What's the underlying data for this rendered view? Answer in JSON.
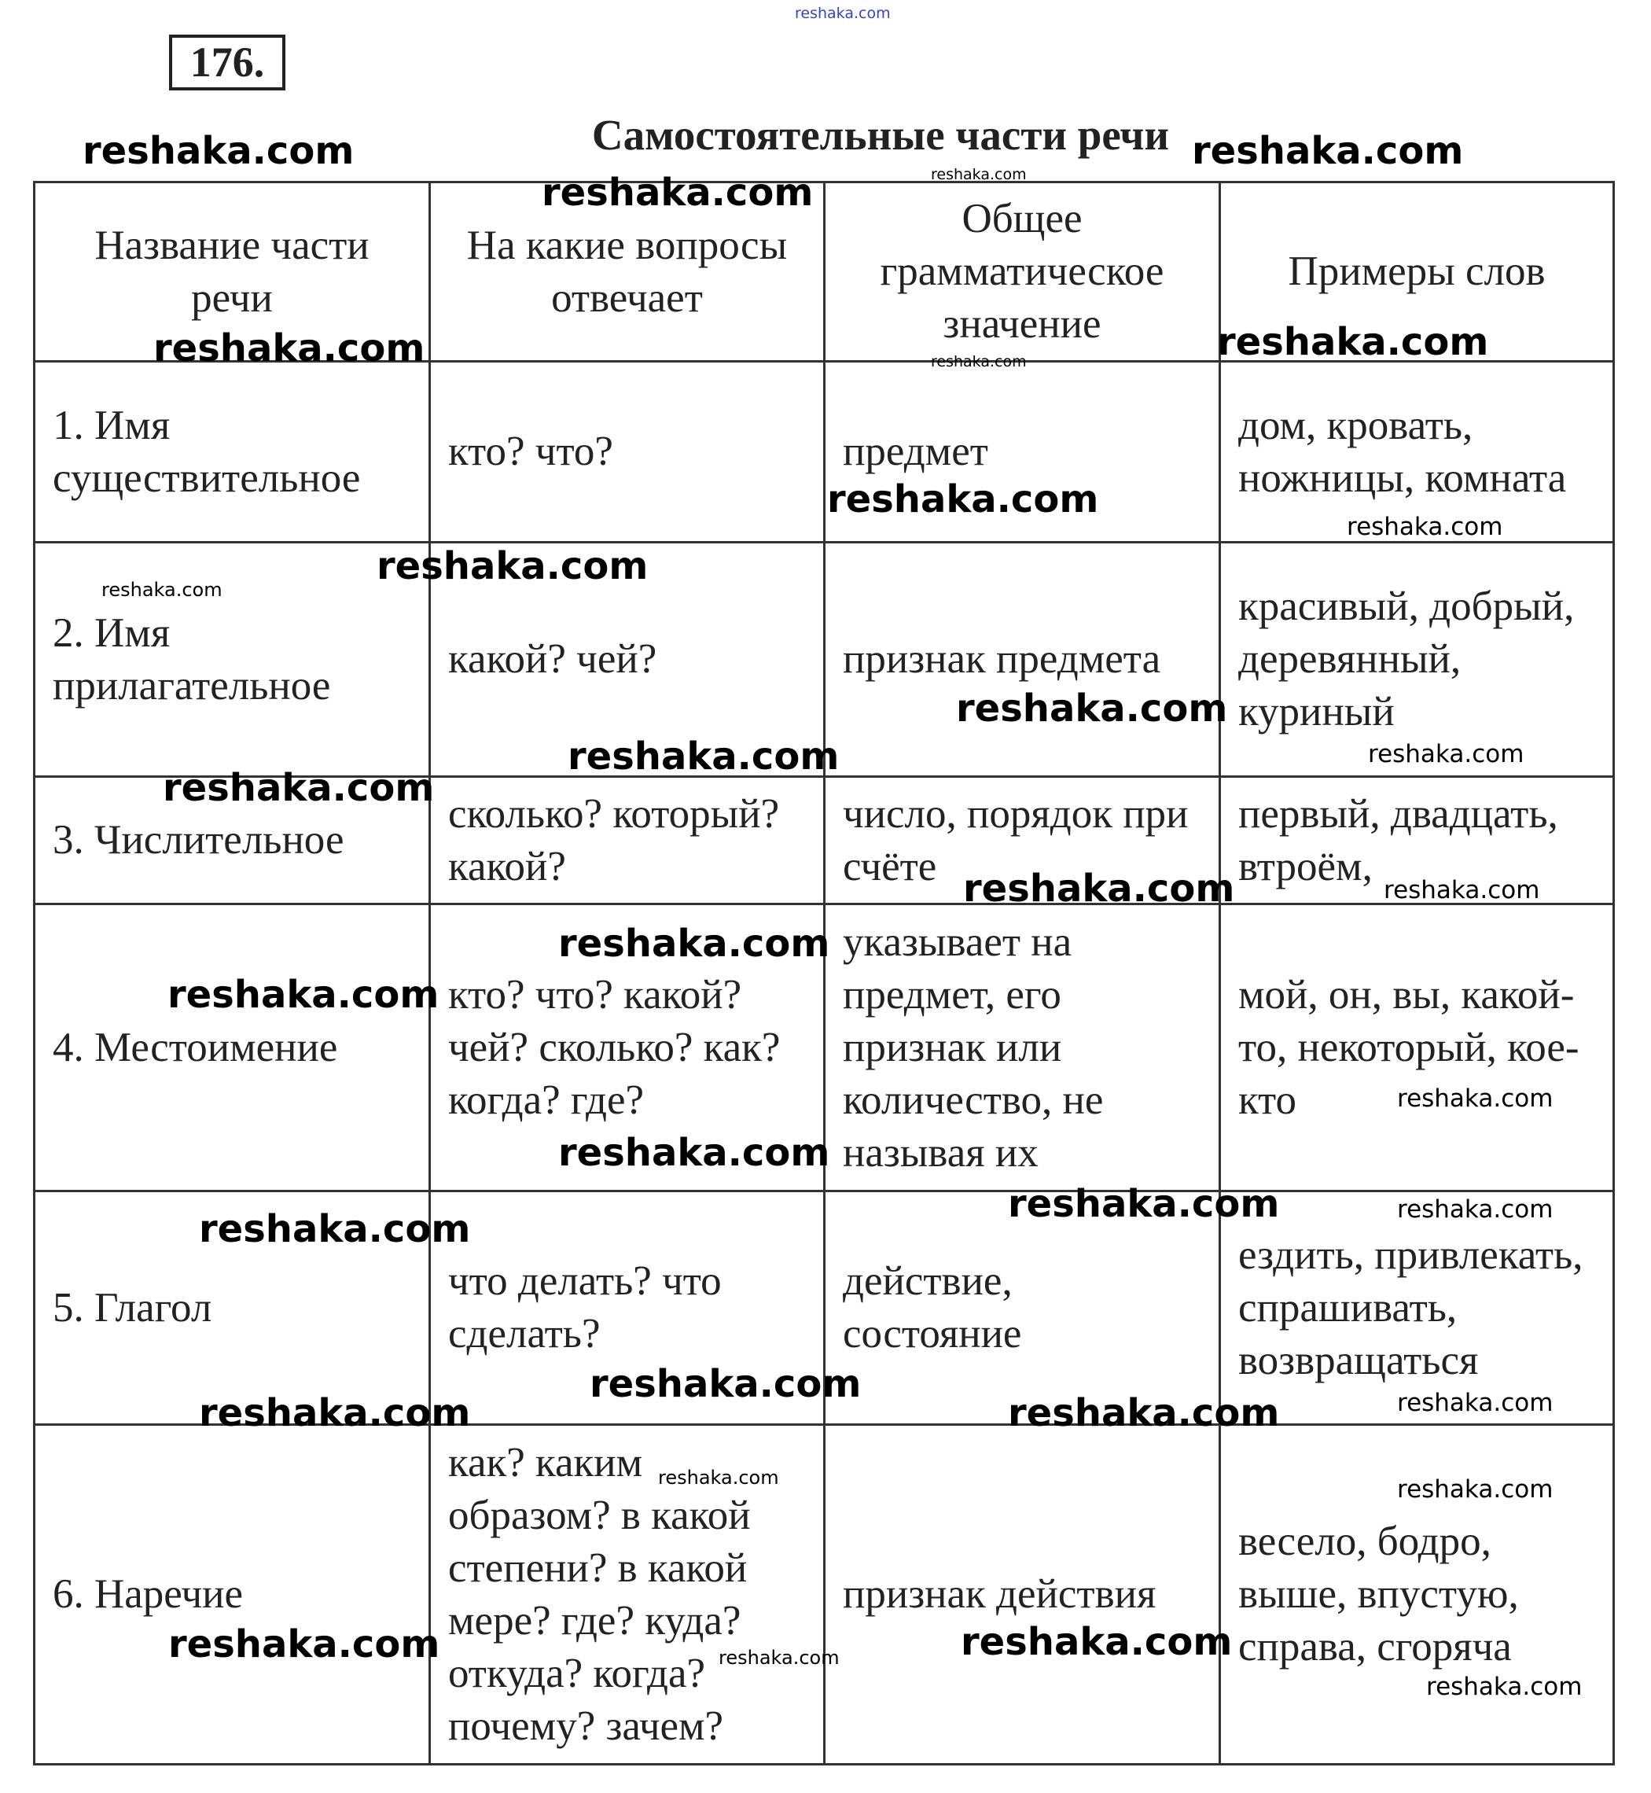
{
  "exercise_number": "176.",
  "title": "Самостоятельные части речи",
  "table": {
    "headers": [
      "Название части речи",
      "На какие вопросы отвечает",
      "Общее грамматическое значение",
      "Примеры слов"
    ],
    "rows": [
      [
        "1. Имя существительное",
        "кто? что?",
        "предмет",
        "дом, кровать, ножницы, комната"
      ],
      [
        "2. Имя прилагательное",
        "какой? чей?",
        "признак предмета",
        "красивый, добрый, деревянный, куриный"
      ],
      [
        "3. Числительное",
        "сколько? который? какой?",
        "число, порядок при счёте",
        "первый, двадцать, втроём,"
      ],
      [
        "4. Местоимение",
        "кто? что? какой? чей? сколько? как? когда? где?",
        "указывает на предмет, его признак или количество, не называя их",
        "мой, он, вы, какой-то, некоторый, кое-кто"
      ],
      [
        "5. Глагол",
        "что делать? что сделать?",
        "действие, состояние",
        "ездить, привлекать, спрашивать, возвращаться"
      ],
      [
        "6. Наречие",
        "как? каким образом? в какой степени? в какой мере? где? куда? откуда? когда? почему? зачем?",
        "признак действия",
        "весело, бодро, выше, впустую, справа, сгоряча"
      ]
    ]
  },
  "watermark": "reshaka.com",
  "watermark_color_top": "#3344cc"
}
